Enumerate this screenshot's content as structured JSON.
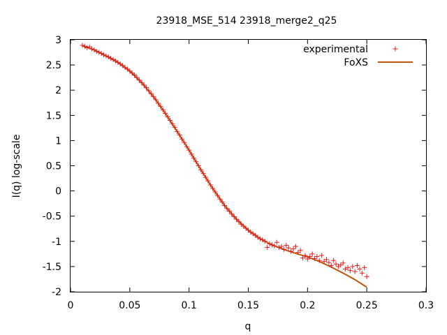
{
  "chart_data": {
    "type": "scatter",
    "title": "23918_MSE_514 23918_merge2_q25",
    "xlabel": "q",
    "ylabel": "I(q) log-scale",
    "xlim": [
      0,
      0.3
    ],
    "ylim": [
      -2,
      3
    ],
    "x_ticks": [
      0,
      0.05,
      0.1,
      0.15,
      0.2,
      0.25,
      0.3
    ],
    "x_tick_labels": [
      "0",
      "0.05",
      "0.1",
      "0.15",
      "0.2",
      "0.25",
      "0.3"
    ],
    "y_ticks": [
      -2,
      -1.5,
      -1,
      -0.5,
      0,
      0.5,
      1,
      1.5,
      2,
      2.5,
      3
    ],
    "y_tick_labels": [
      "-2",
      "-1.5",
      "-1",
      "-0.5",
      "0",
      "0.5",
      "1",
      "1.5",
      "2",
      "2.5",
      "3"
    ],
    "grid": false,
    "legend_position": "top-right",
    "series": [
      {
        "name": "experimental",
        "style": "points",
        "marker": "+",
        "color": "#e41a1c",
        "x": [
          0.01,
          0.012,
          0.014,
          0.016,
          0.018,
          0.02,
          0.022,
          0.024,
          0.026,
          0.028,
          0.03,
          0.032,
          0.034,
          0.036,
          0.038,
          0.04,
          0.042,
          0.044,
          0.046,
          0.048,
          0.05,
          0.052,
          0.054,
          0.056,
          0.058,
          0.06,
          0.062,
          0.064,
          0.066,
          0.068,
          0.07,
          0.072,
          0.074,
          0.076,
          0.078,
          0.08,
          0.082,
          0.084,
          0.086,
          0.088,
          0.09,
          0.092,
          0.094,
          0.096,
          0.098,
          0.1,
          0.102,
          0.104,
          0.106,
          0.108,
          0.11,
          0.112,
          0.114,
          0.116,
          0.118,
          0.12,
          0.122,
          0.124,
          0.126,
          0.128,
          0.13,
          0.132,
          0.134,
          0.136,
          0.138,
          0.14,
          0.142,
          0.144,
          0.146,
          0.148,
          0.15,
          0.152,
          0.154,
          0.156,
          0.158,
          0.16,
          0.162,
          0.164,
          0.166,
          0.168,
          0.17,
          0.172,
          0.174,
          0.176,
          0.178,
          0.18,
          0.182,
          0.184,
          0.186,
          0.188,
          0.19,
          0.192,
          0.194,
          0.196,
          0.198,
          0.2,
          0.202,
          0.204,
          0.206,
          0.208,
          0.21,
          0.212,
          0.214,
          0.216,
          0.218,
          0.22,
          0.222,
          0.224,
          0.226,
          0.228,
          0.23,
          0.232,
          0.234,
          0.236,
          0.238,
          0.24,
          0.242,
          0.244,
          0.246,
          0.248,
          0.25
        ],
        "y": [
          2.89,
          2.87,
          2.84,
          2.86,
          2.82,
          2.8,
          2.77,
          2.75,
          2.73,
          2.7,
          2.68,
          2.66,
          2.63,
          2.61,
          2.58,
          2.55,
          2.52,
          2.49,
          2.45,
          2.42,
          2.38,
          2.34,
          2.3,
          2.25,
          2.2,
          2.15,
          2.1,
          2.05,
          1.99,
          1.93,
          1.87,
          1.81,
          1.74,
          1.68,
          1.61,
          1.54,
          1.47,
          1.4,
          1.33,
          1.26,
          1.18,
          1.11,
          1.03,
          0.96,
          0.88,
          0.81,
          0.73,
          0.65,
          0.58,
          0.5,
          0.42,
          0.35,
          0.27,
          0.2,
          0.12,
          0.05,
          -0.02,
          -0.09,
          -0.16,
          -0.22,
          -0.29,
          -0.35,
          -0.4,
          -0.46,
          -0.51,
          -0.56,
          -0.61,
          -0.66,
          -0.7,
          -0.74,
          -0.78,
          -0.82,
          -0.85,
          -0.88,
          -0.92,
          -0.95,
          -0.97,
          -1.0,
          -1.12,
          -1.05,
          -1.07,
          -1.09,
          -1.02,
          -1.12,
          -1.1,
          -1.16,
          -1.08,
          -1.13,
          -1.2,
          -1.15,
          -1.1,
          -1.22,
          -1.18,
          -1.33,
          -1.28,
          -1.35,
          -1.3,
          -1.25,
          -1.34,
          -1.3,
          -1.38,
          -1.28,
          -1.4,
          -1.36,
          -1.42,
          -1.48,
          -1.38,
          -1.45,
          -1.5,
          -1.47,
          -1.43,
          -1.55,
          -1.52,
          -1.58,
          -1.5,
          -1.6,
          -1.48,
          -1.55,
          -1.63,
          -1.52,
          -1.7
        ]
      },
      {
        "name": "FoXS",
        "style": "line",
        "color": "#c0540a",
        "x": [
          0.01,
          0.02,
          0.03,
          0.04,
          0.05,
          0.06,
          0.07,
          0.08,
          0.09,
          0.1,
          0.11,
          0.12,
          0.13,
          0.14,
          0.15,
          0.16,
          0.17,
          0.18,
          0.19,
          0.2,
          0.21,
          0.22,
          0.23,
          0.24,
          0.25
        ],
        "y": [
          2.88,
          2.8,
          2.68,
          2.55,
          2.38,
          2.15,
          1.87,
          1.54,
          1.18,
          0.81,
          0.42,
          0.05,
          -0.29,
          -0.56,
          -0.78,
          -0.95,
          -1.07,
          -1.16,
          -1.24,
          -1.31,
          -1.4,
          -1.51,
          -1.63,
          -1.76,
          -1.91
        ]
      }
    ]
  }
}
